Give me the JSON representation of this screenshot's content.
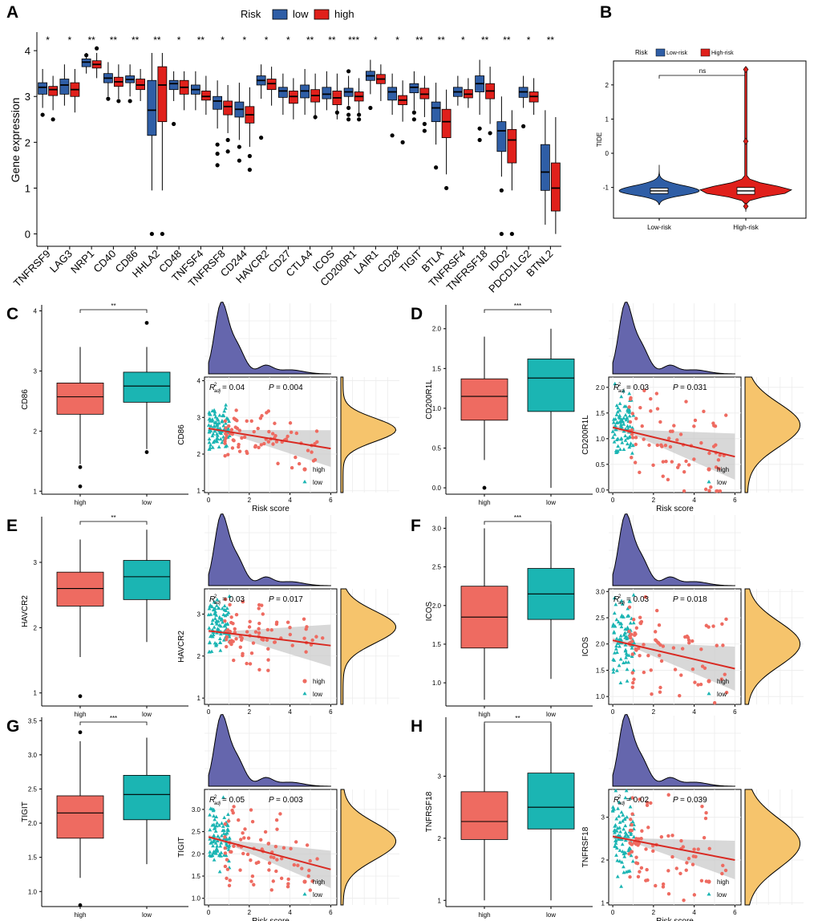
{
  "colors": {
    "low": "#2f5ea6",
    "high": "#e0201b",
    "box_high": "#ee6b61",
    "box_low": "#1bb5b3",
    "density_top": "#6566ad",
    "density_right": "#f6c46c",
    "reg_line": "#d92a22",
    "ci": "#c8c8c8"
  },
  "panel_labels": [
    "A",
    "B",
    "C",
    "D",
    "E",
    "F",
    "G",
    "H"
  ],
  "chart_data": [
    {
      "panel": "A",
      "type": "box",
      "legend": {
        "title": "Risk",
        "items": [
          "low",
          "high"
        ]
      },
      "ylabel": "Gene expression",
      "ylim": [
        -0.2,
        4.3
      ],
      "yticks": [
        "0",
        "1",
        "2",
        "3",
        "4"
      ],
      "genes": [
        "TNFRSF9",
        "LAG3",
        "NRP1",
        "CD40",
        "CD86",
        "HHLA2",
        "CD48",
        "TNFSF4",
        "TNFRSF8",
        "CD244",
        "HAVCR2",
        "CD27",
        "CTLA4",
        "ICOS",
        "CD200R1",
        "LAIR1",
        "CD28",
        "TIGIT",
        "BTLA",
        "TNFRSF4",
        "TNFRSF18",
        "IDO2",
        "PDCD1LG2",
        "BTNL2"
      ],
      "signif": [
        "*",
        "*",
        "**",
        "**",
        "**",
        "**",
        "*",
        "**",
        "*",
        "*",
        "*",
        "*",
        "**",
        "**",
        "***",
        "*",
        "*",
        "**",
        "**",
        "*",
        "**",
        "**",
        "*",
        "**"
      ],
      "low": [
        [
          2.75,
          3.05,
          3.2,
          3.3,
          3.6
        ],
        [
          2.8,
          3.05,
          3.25,
          3.38,
          3.7
        ],
        [
          3.5,
          3.65,
          3.75,
          3.82,
          3.95
        ],
        [
          3.0,
          3.3,
          3.4,
          3.5,
          3.75
        ],
        [
          3.0,
          3.3,
          3.37,
          3.45,
          3.7
        ],
        [
          0.95,
          2.15,
          2.7,
          3.35,
          3.95
        ],
        [
          2.9,
          3.15,
          3.28,
          3.35,
          3.55
        ],
        [
          2.7,
          3.05,
          3.15,
          3.25,
          3.55
        ],
        [
          2.3,
          2.72,
          2.9,
          3.0,
          3.35
        ],
        [
          2.05,
          2.55,
          2.72,
          2.88,
          3.3
        ],
        [
          2.95,
          3.25,
          3.35,
          3.45,
          3.7
        ],
        [
          2.6,
          2.98,
          3.12,
          3.2,
          3.5
        ],
        [
          2.6,
          2.97,
          3.12,
          3.25,
          3.6
        ],
        [
          2.7,
          2.95,
          3.05,
          3.2,
          3.55
        ],
        [
          2.8,
          3.0,
          3.1,
          3.18,
          3.45
        ],
        [
          3.05,
          3.35,
          3.45,
          3.55,
          3.8
        ],
        [
          2.6,
          2.92,
          3.1,
          3.2,
          3.5
        ],
        [
          2.7,
          3.08,
          3.2,
          3.28,
          3.55
        ],
        [
          1.95,
          2.45,
          2.75,
          2.88,
          3.3
        ],
        [
          2.8,
          3.0,
          3.1,
          3.2,
          3.45
        ],
        [
          2.6,
          3.1,
          3.28,
          3.45,
          3.8
        ],
        [
          1.25,
          1.8,
          2.25,
          2.45,
          3.0
        ],
        [
          2.75,
          2.98,
          3.1,
          3.2,
          3.45
        ],
        [
          0.2,
          0.95,
          1.35,
          1.95,
          2.7
        ]
      ],
      "high": [
        [
          2.7,
          3.02,
          3.15,
          3.22,
          3.45
        ],
        [
          2.65,
          3.0,
          3.15,
          3.3,
          3.6
        ],
        [
          3.4,
          3.62,
          3.7,
          3.78,
          3.95
        ],
        [
          2.95,
          3.22,
          3.32,
          3.42,
          3.7
        ],
        [
          2.9,
          3.15,
          3.25,
          3.38,
          3.6
        ],
        [
          0.95,
          2.45,
          3.25,
          3.65,
          3.95
        ],
        [
          2.7,
          3.05,
          3.2,
          3.35,
          3.55
        ],
        [
          2.6,
          2.92,
          3.0,
          3.12,
          3.45
        ],
        [
          2.2,
          2.6,
          2.78,
          2.9,
          3.25
        ],
        [
          1.9,
          2.42,
          2.6,
          2.78,
          3.2
        ],
        [
          2.8,
          3.15,
          3.28,
          3.38,
          3.65
        ],
        [
          2.5,
          2.85,
          3.0,
          3.12,
          3.4
        ],
        [
          2.5,
          2.88,
          3.02,
          3.15,
          3.5
        ],
        [
          2.5,
          2.82,
          2.97,
          3.12,
          3.5
        ],
        [
          2.6,
          2.9,
          3.0,
          3.1,
          3.4
        ],
        [
          2.9,
          3.28,
          3.38,
          3.48,
          3.7
        ],
        [
          2.45,
          2.82,
          2.92,
          3.02,
          3.35
        ],
        [
          2.55,
          2.95,
          3.05,
          3.18,
          3.45
        ],
        [
          1.3,
          2.1,
          2.45,
          2.72,
          3.15
        ],
        [
          2.75,
          2.97,
          3.05,
          3.15,
          3.4
        ],
        [
          2.4,
          2.95,
          3.12,
          3.28,
          3.65
        ],
        [
          0.95,
          1.55,
          2.05,
          2.28,
          2.7
        ],
        [
          2.6,
          2.88,
          3.0,
          3.1,
          3.4
        ],
        [
          0.0,
          0.5,
          1.0,
          1.55,
          2.55
        ]
      ],
      "outliers_low": [
        [
          2.6
        ],
        [],
        [
          3.9
        ],
        [
          2.95
        ],
        [
          2.9
        ],
        [
          0.0
        ],
        [
          2.4
        ],
        [],
        [
          1.5,
          1.75,
          1.95
        ],
        [
          1.6,
          1.9
        ],
        [
          2.1
        ],
        [],
        [],
        [],
        [
          2.5,
          2.6,
          2.75,
          3.55
        ],
        [
          2.75
        ],
        [
          2.15
        ],
        [
          2.5,
          2.65
        ],
        [
          1.45
        ],
        [],
        [
          2.05,
          2.3
        ],
        [
          0.95,
          0.0
        ],
        [
          2.35
        ],
        []
      ],
      "outliers_high": [
        [
          2.5
        ],
        [],
        [
          4.05
        ],
        [
          2.9
        ],
        [],
        [
          0.0
        ],
        [],
        [],
        [
          1.8,
          2.05
        ],
        [
          1.4,
          1.7
        ],
        [],
        [],
        [
          2.55
        ],
        [
          2.65
        ],
        [
          2.5,
          2.6
        ],
        [],
        [
          2.0
        ],
        [
          2.25,
          2.4
        ],
        [
          1.0
        ],
        [],
        [
          2.2
        ],
        [
          0.0
        ],
        [],
        []
      ]
    },
    {
      "panel": "B",
      "type": "violin",
      "legend": {
        "title": "Risk",
        "items": [
          "Low-risk",
          "High-risk"
        ]
      },
      "ylabel": "TIDE",
      "categories": [
        "Low-risk",
        "High-risk"
      ],
      "ylim": [
        -1.9,
        2.7
      ],
      "yticks": [
        "-1",
        "0",
        "1",
        "2"
      ],
      "signif": "ns",
      "median": [
        -1.1,
        -1.1
      ],
      "q1": [
        -1.18,
        -1.2
      ],
      "q3": [
        -1.02,
        -1.0
      ],
      "min": [
        -1.5,
        -1.7
      ],
      "max": [
        -0.35,
        2.5
      ],
      "outliers_high": [
        2.45,
        0.35,
        -1.55
      ]
    },
    {
      "panel": "C",
      "gene": "CD86",
      "box_categories": [
        "high",
        "low"
      ],
      "box_ylim": [
        0.95,
        4.1
      ],
      "box_yticks": [
        "1",
        "2",
        "3",
        "4"
      ],
      "signif": "**",
      "box_high": [
        1.45,
        2.28,
        2.57,
        2.8,
        3.4
      ],
      "box_low": [
        1.7,
        2.48,
        2.75,
        2.98,
        3.4
      ],
      "box_high_out": [
        1.4,
        1.08
      ],
      "box_low_out": [
        1.65,
        3.8
      ],
      "scatter_label": "CD86",
      "xlabel": "Risk score",
      "xticks": [
        "0",
        "2",
        "4",
        "6"
      ],
      "sc_ylim": [
        0.95,
        4.1
      ],
      "sc_yticks": [
        "1",
        "2",
        "3",
        "4"
      ],
      "r2": "0.04",
      "p": "0.004",
      "reg": [
        [
          0,
          2.7
        ],
        [
          6,
          2.15
        ]
      ],
      "ci_w": [
        0.05,
        0.5
      ],
      "legend": [
        "high",
        "low"
      ]
    },
    {
      "panel": "D",
      "gene": "CD200R1L",
      "box_categories": [
        "high",
        "low"
      ],
      "box_ylim": [
        -0.08,
        2.3
      ],
      "box_yticks": [
        "0.0",
        "0.5",
        "1.0",
        "1.5",
        "2.0"
      ],
      "signif": "***",
      "box_high": [
        0.35,
        0.85,
        1.15,
        1.37,
        1.9
      ],
      "box_low": [
        0.0,
        0.96,
        1.38,
        1.62,
        2.0
      ],
      "box_high_out": [
        0.0
      ],
      "box_low_out": [],
      "scatter_label": "CD200R1L",
      "xlabel": "Risk score",
      "xticks": [
        "0",
        "2",
        "4",
        "6"
      ],
      "sc_ylim": [
        -0.05,
        2.2
      ],
      "sc_yticks": [
        "0.0",
        "0.5",
        "1.0",
        "1.5",
        "2.0"
      ],
      "r2": "0.03",
      "p": "0.031",
      "reg": [
        [
          0,
          1.22
        ],
        [
          6,
          0.65
        ]
      ],
      "ci_w": [
        0.05,
        0.45
      ],
      "legend": [
        "high",
        "low"
      ]
    },
    {
      "panel": "E",
      "gene": "HAVCR2",
      "box_categories": [
        "high",
        "low"
      ],
      "box_ylim": [
        0.8,
        3.7
      ],
      "box_yticks": [
        "1",
        "2",
        "3"
      ],
      "signif": "**",
      "box_high": [
        1.55,
        2.33,
        2.6,
        2.85,
        3.35
      ],
      "box_low": [
        1.78,
        2.43,
        2.78,
        3.03,
        3.5
      ],
      "box_high_out": [
        0.95
      ],
      "box_low_out": [],
      "scatter_label": "HAVCR2",
      "xlabel": "Risk score",
      "xticks": [
        "0",
        "2",
        "4",
        "6"
      ],
      "sc_ylim": [
        0.85,
        3.6
      ],
      "sc_yticks": [
        "1",
        "2",
        "3"
      ],
      "r2": "0.03",
      "p": "0.017",
      "reg": [
        [
          0,
          2.6
        ],
        [
          6,
          2.25
        ]
      ],
      "ci_w": [
        0.05,
        0.5
      ],
      "legend": [
        "high",
        "low"
      ]
    },
    {
      "panel": "F",
      "gene": "ICOS",
      "box_categories": [
        "high",
        "low"
      ],
      "box_ylim": [
        0.7,
        3.15
      ],
      "box_yticks": [
        "1.0",
        "1.5",
        "2.0",
        "2.5",
        "3.0"
      ],
      "signif": "***",
      "box_high": [
        0.78,
        1.45,
        1.85,
        2.25,
        3.0
      ],
      "box_low": [
        1.05,
        1.82,
        2.15,
        2.48,
        3.05
      ],
      "box_high_out": [],
      "box_low_out": [],
      "scatter_label": "ICOS",
      "xlabel": "Risk score",
      "xticks": [
        "0",
        "2",
        "4",
        "6"
      ],
      "sc_ylim": [
        0.85,
        3.05
      ],
      "sc_yticks": [
        "1.0",
        "1.5",
        "2.0",
        "2.5",
        "3.0"
      ],
      "r2": "0.03",
      "p": "0.018",
      "reg": [
        [
          0,
          2.07
        ],
        [
          6,
          1.53
        ]
      ],
      "ci_w": [
        0.05,
        0.42
      ],
      "legend": [
        "high",
        "low"
      ]
    },
    {
      "panel": "G",
      "gene": "TIGIT",
      "box_categories": [
        "high",
        "low"
      ],
      "box_ylim": [
        0.78,
        3.55
      ],
      "box_yticks": [
        "1.0",
        "1.5",
        "2.0",
        "2.5",
        "3.0",
        "3.5"
      ],
      "signif": "***",
      "box_high": [
        1.2,
        1.78,
        2.15,
        2.4,
        3.2
      ],
      "box_low": [
        1.4,
        2.05,
        2.42,
        2.7,
        3.25
      ],
      "box_high_out": [
        0.8,
        3.33
      ],
      "box_low_out": [],
      "scatter_label": "TIGIT",
      "xlabel": "Risk score",
      "xticks": [
        "0",
        "2",
        "4",
        "6"
      ],
      "sc_ylim": [
        0.85,
        3.45
      ],
      "sc_yticks": [
        "1.0",
        "1.5",
        "2.0",
        "2.5",
        "3.0"
      ],
      "r2": "0.05",
      "p": "0.003",
      "reg": [
        [
          0,
          2.38
        ],
        [
          6,
          1.65
        ]
      ],
      "ci_w": [
        0.05,
        0.42
      ],
      "legend": [
        "high",
        "low"
      ]
    },
    {
      "panel": "H",
      "gene": "TNFRSF18",
      "box_categories": [
        "high",
        "low"
      ],
      "box_ylim": [
        0.9,
        3.95
      ],
      "box_yticks": [
        "1",
        "2",
        "3"
      ],
      "signif": "**",
      "box_high": [
        1.0,
        1.98,
        2.27,
        2.75,
        3.85
      ],
      "box_low": [
        1.0,
        2.15,
        2.5,
        3.05,
        3.85
      ],
      "box_high_out": [],
      "box_low_out": [],
      "scatter_label": "TNFRSF18",
      "xlabel": "Risk score",
      "xticks": [
        "0",
        "2",
        "4",
        "6"
      ],
      "sc_ylim": [
        0.95,
        3.65
      ],
      "sc_yticks": [
        "1",
        "2",
        "3"
      ],
      "r2": "0.02",
      "p": "0.039",
      "reg": [
        [
          0,
          2.55
        ],
        [
          6,
          2.0
        ]
      ],
      "ci_w": [
        0.05,
        0.45
      ],
      "legend": [
        "high",
        "low"
      ]
    }
  ]
}
